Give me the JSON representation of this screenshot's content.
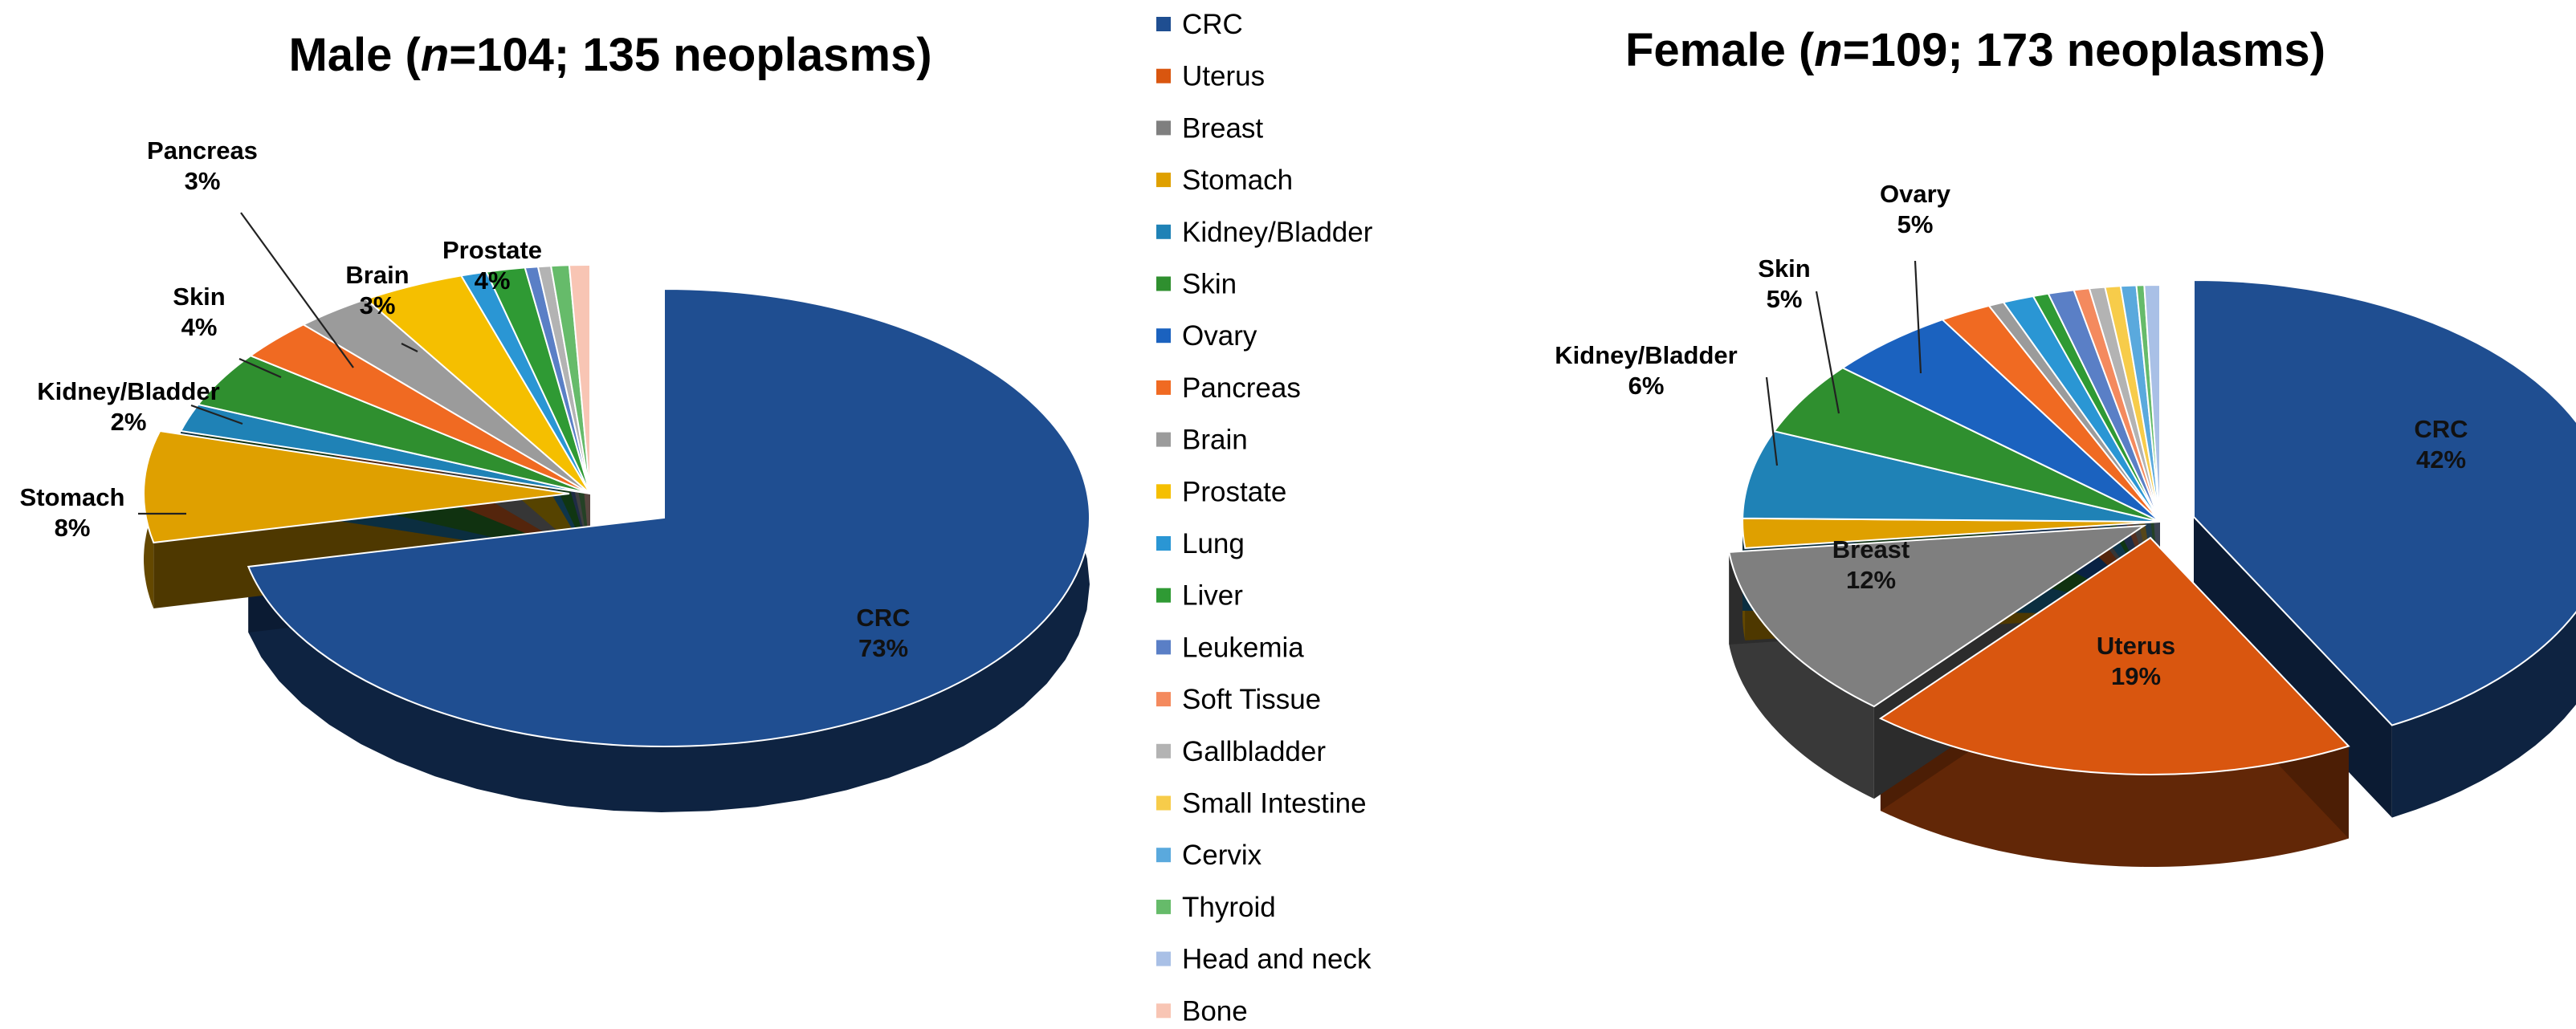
{
  "chart_data": [
    {
      "type": "pie",
      "title": {
        "prefix": "Male (",
        "italic": "n",
        "suffix": "=104; 135 neoplasms)"
      },
      "slices": [
        {
          "name": "CRC",
          "value": 73,
          "label": "73%",
          "color": "#1f4e91"
        },
        {
          "name": "Uterus",
          "value": 0,
          "label": "",
          "color": "#d9560f"
        },
        {
          "name": "Breast",
          "value": 0,
          "label": "",
          "color": "#7f7f7f"
        },
        {
          "name": "Stomach",
          "value": 8,
          "label": "8%",
          "color": "#dfa000"
        },
        {
          "name": "Kidney/Bladder",
          "value": 2,
          "label": "2%",
          "color": "#1f82b6"
        },
        {
          "name": "Skin",
          "value": 4,
          "label": "4%",
          "color": "#2f8f2f"
        },
        {
          "name": "Ovary",
          "value": 0,
          "label": "",
          "color": "#1b62bf"
        },
        {
          "name": "Pancreas",
          "value": 3,
          "label": "3%",
          "color": "#f06a22"
        },
        {
          "name": "Brain",
          "value": 3,
          "label": "3%",
          "color": "#9b9b9b"
        },
        {
          "name": "Prostate",
          "value": 4,
          "label": "4%",
          "color": "#f5bf00"
        },
        {
          "name": "Lung",
          "value": 1,
          "label": "",
          "color": "#2a96d4"
        },
        {
          "name": "Liver",
          "value": 1.5,
          "label": "",
          "color": "#2f9a34"
        },
        {
          "name": "Leukemia",
          "value": 0.5,
          "label": "",
          "color": "#5a7fc6"
        },
        {
          "name": "Soft Tissue",
          "value": 0,
          "label": "",
          "color": "#f48a5e"
        },
        {
          "name": "Gallbladder",
          "value": 0.5,
          "label": "",
          "color": "#b3b3b3"
        },
        {
          "name": "Small Intestine",
          "value": 0,
          "label": "",
          "color": "#f7cc4a"
        },
        {
          "name": "Cervix",
          "value": 0,
          "label": "",
          "color": "#5aa9dd"
        },
        {
          "name": "Thyroid",
          "value": 0.7,
          "label": "",
          "color": "#66bb6a"
        },
        {
          "name": "Head and neck",
          "value": 0,
          "label": "",
          "color": "#a9c0e6"
        },
        {
          "name": "Bone",
          "value": 0.8,
          "label": "",
          "color": "#f8c5b4"
        }
      ]
    },
    {
      "type": "pie",
      "title": {
        "prefix": "Female (",
        "italic": "n",
        "suffix": "=109; 173 neoplasms)"
      },
      "slices": [
        {
          "name": "CRC",
          "value": 42,
          "label": "42%",
          "color": "#1f4e91"
        },
        {
          "name": "Uterus",
          "value": 19,
          "label": "19%",
          "color": "#d9560f"
        },
        {
          "name": "Breast",
          "value": 12,
          "label": "12%",
          "color": "#7f7f7f"
        },
        {
          "name": "Stomach",
          "value": 2,
          "label": "",
          "color": "#dfa000"
        },
        {
          "name": "Kidney/Bladder",
          "value": 6,
          "label": "6%",
          "color": "#1f82b6"
        },
        {
          "name": "Skin",
          "value": 5,
          "label": "5%",
          "color": "#2f8f2f"
        },
        {
          "name": "Ovary",
          "value": 5,
          "label": "5%",
          "color": "#1b62bf"
        },
        {
          "name": "Pancreas",
          "value": 2,
          "label": "",
          "color": "#f06a22"
        },
        {
          "name": "Brain",
          "value": 0.6,
          "label": "",
          "color": "#9b9b9b"
        },
        {
          "name": "Prostate",
          "value": 0,
          "label": "",
          "color": "#f5bf00"
        },
        {
          "name": "Lung",
          "value": 1.2,
          "label": "",
          "color": "#2a96d4"
        },
        {
          "name": "Liver",
          "value": 0.6,
          "label": "",
          "color": "#2f9a34"
        },
        {
          "name": "Leukemia",
          "value": 1,
          "label": "",
          "color": "#5a7fc6"
        },
        {
          "name": "Soft Tissue",
          "value": 0.6,
          "label": "",
          "color": "#f48a5e"
        },
        {
          "name": "Gallbladder",
          "value": 0.6,
          "label": "",
          "color": "#b3b3b3"
        },
        {
          "name": "Small Intestine",
          "value": 0.6,
          "label": "",
          "color": "#f7cc4a"
        },
        {
          "name": "Cervix",
          "value": 0.6,
          "label": "",
          "color": "#5aa9dd"
        },
        {
          "name": "Thyroid",
          "value": 0.3,
          "label": "",
          "color": "#66bb6a"
        },
        {
          "name": "Head and neck",
          "value": 0.6,
          "label": "",
          "color": "#a9c0e6"
        },
        {
          "name": "Bone",
          "value": 0,
          "label": "",
          "color": "#f8c5b4"
        }
      ]
    }
  ],
  "legend": [
    {
      "name": "CRC",
      "color": "#1f4e91"
    },
    {
      "name": "Uterus",
      "color": "#d9560f"
    },
    {
      "name": "Breast",
      "color": "#7f7f7f"
    },
    {
      "name": "Stomach",
      "color": "#dfa000"
    },
    {
      "name": "Kidney/Bladder",
      "color": "#1f82b6"
    },
    {
      "name": "Skin",
      "color": "#2f8f2f"
    },
    {
      "name": "Ovary",
      "color": "#1b62bf"
    },
    {
      "name": "Pancreas",
      "color": "#f06a22"
    },
    {
      "name": "Brain",
      "color": "#9b9b9b"
    },
    {
      "name": "Prostate",
      "color": "#f5bf00"
    },
    {
      "name": "Lung",
      "color": "#2a96d4"
    },
    {
      "name": "Liver",
      "color": "#2f9a34"
    },
    {
      "name": "Leukemia",
      "color": "#5a7fc6"
    },
    {
      "name": "Soft Tissue",
      "color": "#f48a5e"
    },
    {
      "name": "Gallbladder",
      "color": "#b3b3b3"
    },
    {
      "name": "Small Intestine",
      "color": "#f7cc4a"
    },
    {
      "name": "Cervix",
      "color": "#5aa9dd"
    },
    {
      "name": "Thyroid",
      "color": "#66bb6a"
    },
    {
      "name": "Head and neck",
      "color": "#a9c0e6"
    },
    {
      "name": "Bone",
      "color": "#f8c5b4"
    }
  ]
}
